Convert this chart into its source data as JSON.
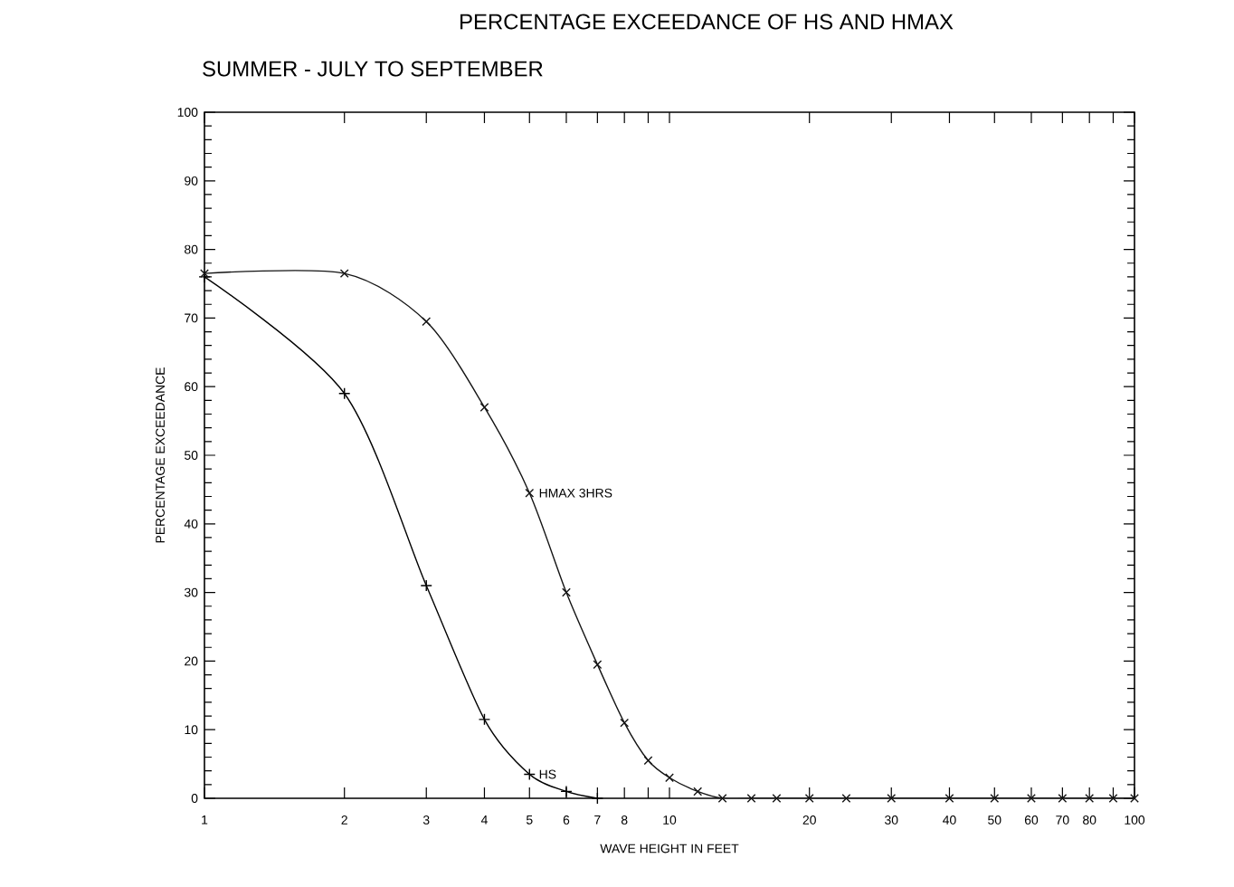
{
  "chart_data": {
    "type": "line",
    "title": "PERCENTAGE EXCEEDANCE OF HS AND HMAX",
    "subtitle": "SUMMER - JULY TO SEPTEMBER",
    "xlabel": "WAVE HEIGHT IN FEET",
    "ylabel": "PERCENTAGE EXCEEDANCE",
    "log": "x",
    "xlim": [
      1,
      100
    ],
    "ylim": [
      0,
      100
    ],
    "xticks": [
      1,
      2,
      3,
      4,
      5,
      6,
      7,
      8,
      {
        "value": 9,
        "label": null
      },
      10,
      20,
      30,
      40,
      50,
      60,
      70,
      80,
      {
        "value": 90,
        "label": null
      },
      100
    ],
    "yticks": [
      0,
      10,
      20,
      30,
      40,
      50,
      60,
      70,
      80,
      90,
      100
    ],
    "grid": false,
    "line_style": "solid",
    "series": [
      {
        "name": "HS",
        "color": "#000000",
        "marker": "cross",
        "x": [
          1,
          2,
          3,
          4,
          5,
          6,
          7
        ],
        "values": [
          76,
          59,
          31,
          11.5,
          3.5,
          1,
          0
        ]
      },
      {
        "name": "HMAX 3HRS",
        "color": "#141414",
        "marker": "cross",
        "x": [
          1,
          2,
          3,
          4,
          5,
          6,
          7,
          8,
          9,
          10,
          11.5,
          13,
          15,
          17,
          20,
          24,
          30,
          40,
          50,
          60,
          70,
          80,
          90,
          100
        ],
        "values": [
          76.5,
          76.5,
          69.5,
          57,
          44.5,
          30,
          19.5,
          11,
          5.5,
          3,
          1,
          0,
          0,
          0,
          0,
          0,
          0,
          0,
          0,
          0,
          0,
          0,
          0,
          0
        ]
      }
    ]
  }
}
